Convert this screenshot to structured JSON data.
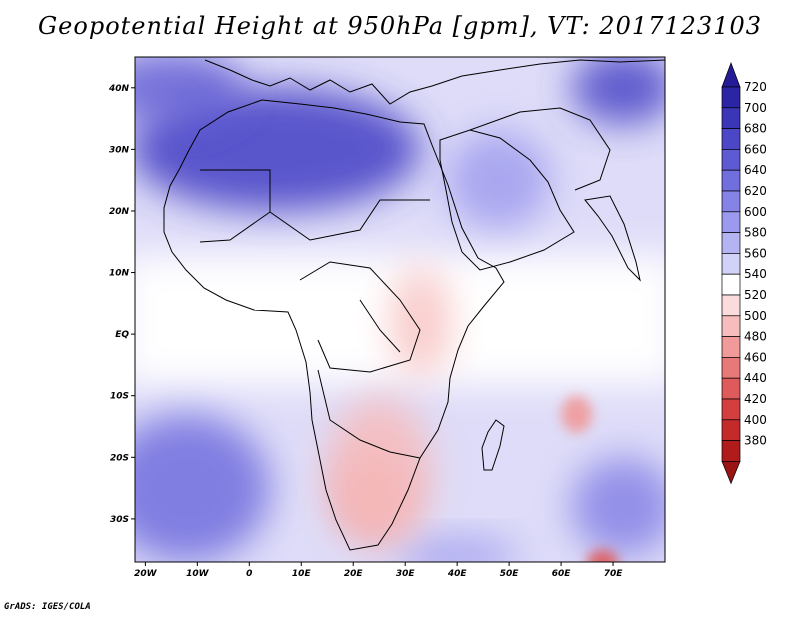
{
  "title": "Geopotential Height at 950hPa [gpm], VT: 2017123103",
  "credit": "GrADS: IGES/COLA",
  "map": {
    "lat_labels": [
      "40N",
      "30N",
      "20N",
      "10N",
      "EQ",
      "10S",
      "20S",
      "30S"
    ],
    "lat_values": [
      40,
      30,
      20,
      10,
      0,
      -10,
      -20,
      -30
    ],
    "lon_labels": [
      "20W",
      "10W",
      "0",
      "10E",
      "20E",
      "30E",
      "40E",
      "50E",
      "60E",
      "70E"
    ],
    "lon_values": [
      -20,
      -10,
      0,
      10,
      20,
      30,
      40,
      50,
      60,
      70
    ],
    "lon_range": [
      -22,
      80
    ],
    "lat_range": [
      -37,
      45
    ]
  },
  "colorbar": {
    "levels": [
      720,
      700,
      680,
      660,
      640,
      620,
      600,
      580,
      560,
      540,
      520,
      500,
      480,
      460,
      440,
      420,
      400,
      380
    ],
    "colors": [
      "#2b25a6",
      "#3b36b8",
      "#4c47c7",
      "#5e5ad3",
      "#716ede",
      "#8683e6",
      "#9c9aee",
      "#b5b4f3",
      "#d2d2f8",
      "#ffffff",
      "#fbdcdc",
      "#f7bcbc",
      "#f09a9a",
      "#e87979",
      "#df5a5a",
      "#d33e3e",
      "#c52a2a",
      "#b01c1c"
    ],
    "top_color": "#231c96",
    "bottom_color": "#9a1414"
  },
  "blobs": [
    {
      "name": "sahara-high",
      "lon": 5,
      "lat": 30,
      "rx": 28,
      "ry": 10,
      "color": "#4c47c7",
      "opacity": 0.9
    },
    {
      "name": "north-atlantic-high",
      "lon": -15,
      "lat": 40,
      "rx": 14,
      "ry": 6,
      "color": "#5e5ad3",
      "opacity": 0.8
    },
    {
      "name": "central-asia-high",
      "lon": 72,
      "lat": 40,
      "rx": 10,
      "ry": 6,
      "color": "#4c47c7",
      "opacity": 0.85
    },
    {
      "name": "arabia-ridge",
      "lon": 48,
      "lat": 25,
      "rx": 10,
      "ry": 8,
      "color": "#9c9aee",
      "opacity": 0.8
    },
    {
      "name": "south-atlantic-high",
      "lon": -12,
      "lat": -25,
      "rx": 16,
      "ry": 12,
      "color": "#716ede",
      "opacity": 0.85
    },
    {
      "name": "south-indian-high",
      "lon": 72,
      "lat": -28,
      "rx": 10,
      "ry": 8,
      "color": "#8683e6",
      "opacity": 0.85
    },
    {
      "name": "southern-ocean-ridge",
      "lon": 40,
      "lat": -36,
      "rx": 12,
      "ry": 3,
      "color": "#9c9aee",
      "opacity": 0.8
    },
    {
      "name": "kalahari-low",
      "lon": 24,
      "lat": -26,
      "rx": 7,
      "ry": 7,
      "color": "#f09a9a",
      "opacity": 0.9
    },
    {
      "name": "southern-africa-low",
      "lon": 25,
      "lat": -22,
      "rx": 10,
      "ry": 12,
      "color": "#f7bcbc",
      "opacity": 0.85
    },
    {
      "name": "east-africa-low",
      "lon": 33,
      "lat": 2,
      "rx": 6,
      "ry": 9,
      "color": "#f7bcbc",
      "opacity": 0.75
    },
    {
      "name": "indian-ocean-low",
      "lon": 63,
      "lat": -13,
      "rx": 3,
      "ry": 3,
      "color": "#f09a9a",
      "opacity": 0.9
    },
    {
      "name": "far-south-low",
      "lon": 68,
      "lat": -37,
      "rx": 3,
      "ry": 2,
      "color": "#df5a5a",
      "opacity": 0.9
    }
  ]
}
